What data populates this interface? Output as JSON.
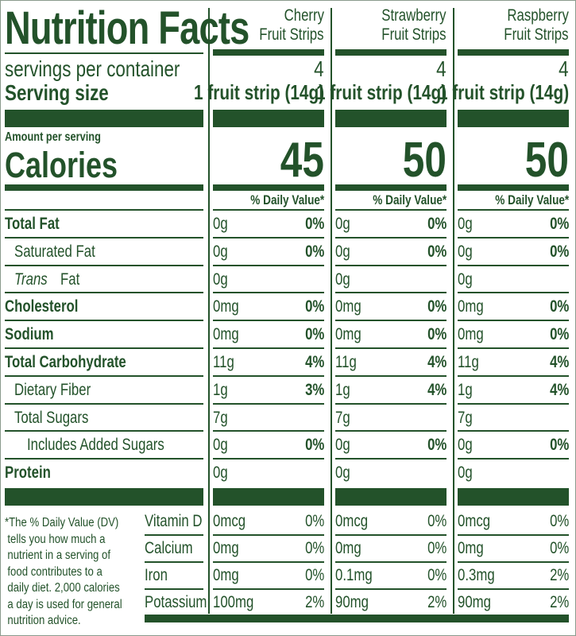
{
  "title": "Nutrition Facts",
  "servings_label": "servings per container",
  "serving_size_label": "Serving size",
  "amount_label": "Amount per serving",
  "calories_label": "Calories",
  "products": [
    {
      "name_line1": "Cherry",
      "name_line2": "Fruit Strips",
      "servings": "4",
      "serving_size": "1 fruit strip (14g)",
      "calories": "45",
      "dv_label": "% Daily Value*",
      "nutrients": [
        [
          "0g",
          "0%"
        ],
        [
          "0g",
          "0%"
        ],
        [
          "0g",
          ""
        ],
        [
          "0mg",
          "0%"
        ],
        [
          "0mg",
          "0%"
        ],
        [
          "11g",
          "4%"
        ],
        [
          "1g",
          "3%"
        ],
        [
          "7g",
          ""
        ],
        [
          "0g",
          "0%"
        ],
        [
          "0g",
          ""
        ]
      ],
      "vitamins": [
        [
          "0mcg",
          "0%"
        ],
        [
          "0mg",
          "0%"
        ],
        [
          "0mg",
          "0%"
        ],
        [
          "100mg",
          "2%"
        ]
      ]
    },
    {
      "name_line1": "Strawberry",
      "name_line2": "Fruit Strips",
      "servings": "4",
      "serving_size": "1 fruit strip (14g)",
      "calories": "50",
      "dv_label": "% Daily Value*",
      "nutrients": [
        [
          "0g",
          "0%"
        ],
        [
          "0g",
          "0%"
        ],
        [
          "0g",
          ""
        ],
        [
          "0mg",
          "0%"
        ],
        [
          "0mg",
          "0%"
        ],
        [
          "11g",
          "4%"
        ],
        [
          "1g",
          "4%"
        ],
        [
          "7g",
          ""
        ],
        [
          "0g",
          "0%"
        ],
        [
          "0g",
          ""
        ]
      ],
      "vitamins": [
        [
          "0mcg",
          "0%"
        ],
        [
          "0mg",
          "0%"
        ],
        [
          "0.1mg",
          "0%"
        ],
        [
          "90mg",
          "2%"
        ]
      ]
    },
    {
      "name_line1": "Raspberry",
      "name_line2": "Fruit Strips",
      "servings": "4",
      "serving_size": "1 fruit strip (14g)",
      "calories": "50",
      "dv_label": "% Daily Value*",
      "nutrients": [
        [
          "0g",
          "0%"
        ],
        [
          "0g",
          "0%"
        ],
        [
          "0g",
          ""
        ],
        [
          "0mg",
          "0%"
        ],
        [
          "0mg",
          "0%"
        ],
        [
          "11g",
          "4%"
        ],
        [
          "1g",
          "4%"
        ],
        [
          "7g",
          ""
        ],
        [
          "0g",
          "0%"
        ],
        [
          "0g",
          ""
        ]
      ],
      "vitamins": [
        [
          "0mcg",
          "0%"
        ],
        [
          "0mg",
          "0%"
        ],
        [
          "0.3mg",
          "2%"
        ],
        [
          "90mg",
          "2%"
        ]
      ]
    }
  ],
  "nutrients": [
    {
      "label": "Total Fat",
      "bold": true,
      "indent": 0
    },
    {
      "label": "Saturated Fat",
      "bold": false,
      "indent": 1
    },
    {
      "label": "Fat",
      "prefix_italic": "Trans",
      "bold": false,
      "indent": 1
    },
    {
      "label": "Cholesterol",
      "bold": true,
      "indent": 0
    },
    {
      "label": "Sodium",
      "bold": true,
      "indent": 0
    },
    {
      "label": "Total Carbohydrate",
      "bold": true,
      "indent": 0
    },
    {
      "label": "Dietary Fiber",
      "bold": false,
      "indent": 1
    },
    {
      "label": "Total Sugars",
      "bold": false,
      "indent": 1
    },
    {
      "label": "Includes Added Sugars",
      "bold": false,
      "indent": 2
    },
    {
      "label": "Protein",
      "bold": true,
      "indent": 0
    }
  ],
  "vitamins": [
    "Vitamin D",
    "Calcium",
    "Iron",
    "Potassium"
  ],
  "footnote": [
    "*The % Daily Value (DV)",
    "tells you how much a",
    "nutrient in a serving of",
    "food contributes to a",
    "daily diet. 2,000 calories",
    "a day is used for general",
    "nutrition advice."
  ],
  "colors": {
    "label_green": "#23522a"
  }
}
